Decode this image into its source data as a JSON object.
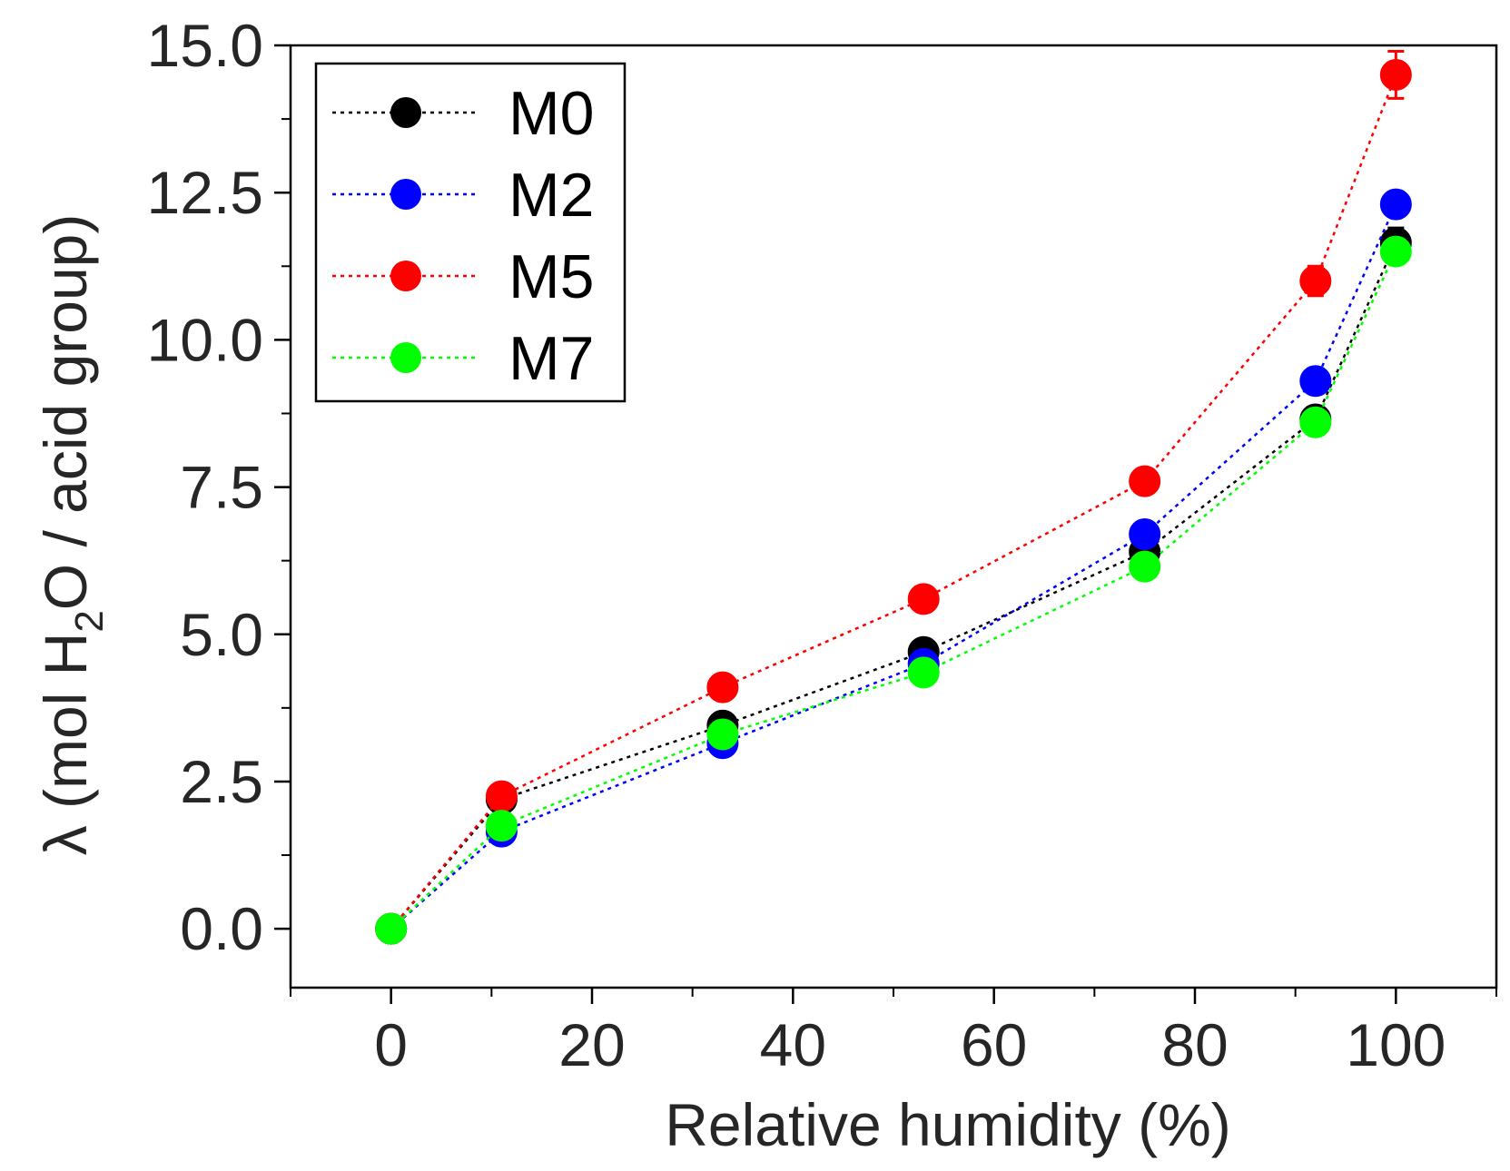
{
  "chart_data": {
    "type": "scatter",
    "xlabel": "Relative humidity (%)",
    "ylabel_parts": {
      "prefix": "λ (mol H",
      "subscript": "2",
      "suffix": "O / acid group)"
    },
    "xlim": [
      -10,
      110
    ],
    "ylim": [
      -1,
      15
    ],
    "x_ticks": [
      0,
      20,
      40,
      60,
      80,
      100
    ],
    "y_ticks": [
      0,
      2.5,
      5,
      7.5,
      10,
      12.5,
      15
    ],
    "y_tick_labels": [
      "0.0",
      "2.5",
      "5.0",
      "7.5",
      "10.0",
      "12.5",
      "15.0"
    ],
    "line_style": "dotted",
    "marker": "circle",
    "legend_position": "top-left",
    "grid": false,
    "series": [
      {
        "name": "M0",
        "color": "#000000",
        "x": [
          0,
          11,
          33,
          53,
          75,
          92,
          100
        ],
        "y": [
          0,
          2.2,
          3.45,
          4.7,
          6.4,
          8.65,
          11.65
        ],
        "err": [
          0,
          0.15,
          0.15,
          0.12,
          0.15,
          0.2,
          0.25
        ]
      },
      {
        "name": "M2",
        "color": "#0000ff",
        "x": [
          0,
          11,
          33,
          53,
          75,
          92,
          100
        ],
        "y": [
          0,
          1.65,
          3.15,
          4.5,
          6.7,
          9.3,
          12.3
        ],
        "err": [
          0,
          0.15,
          0.15,
          0.15,
          0.15,
          0.15,
          0.2
        ]
      },
      {
        "name": "M5",
        "color": "#ff0000",
        "x": [
          0,
          11,
          33,
          53,
          75,
          92,
          100
        ],
        "y": [
          0,
          2.25,
          4.1,
          5.6,
          7.6,
          11.0,
          14.5
        ],
        "err": [
          0,
          0.1,
          0.12,
          0.12,
          0.15,
          0.25,
          0.4
        ]
      },
      {
        "name": "M7",
        "color": "#00ff00",
        "x": [
          0,
          11,
          33,
          53,
          75,
          92,
          100
        ],
        "y": [
          0,
          1.75,
          3.3,
          4.35,
          6.15,
          8.6,
          11.5
        ],
        "err": [
          0,
          0.15,
          0.15,
          0.15,
          0.15,
          0.15,
          0.2
        ]
      }
    ]
  }
}
